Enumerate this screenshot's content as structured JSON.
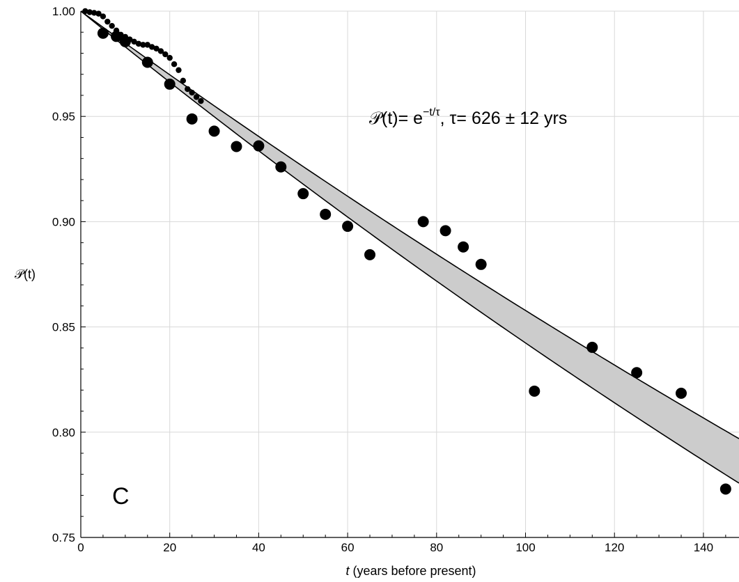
{
  "chart_data": {
    "type": "scatter",
    "title": "",
    "panel_label": "C",
    "annotation": {
      "prefix": "𝒫(t)= e",
      "exponent": "−t/τ",
      "suffix": ", τ= 626 ± 12 yrs"
    },
    "xlabel_var": "t",
    "xlabel_rest": " (years before present)",
    "ylabel": "𝒫(t)",
    "xlim": [
      0,
      148
    ],
    "ylim": [
      0.75,
      1.0
    ],
    "xticks": [
      0,
      20,
      40,
      60,
      80,
      100,
      120,
      140
    ],
    "yticks": [
      0.75,
      0.8,
      0.85,
      0.9,
      0.95,
      1.0
    ],
    "ytick_labels": [
      "0.75",
      "0.80",
      "0.85",
      "0.90",
      "0.95",
      "1.00"
    ],
    "grid": true,
    "band": {
      "upper_tau": 652,
      "lower_tau": 583,
      "fill": "#cccccc"
    },
    "series": [
      {
        "marker": "large-dot",
        "color": "#000000",
        "points": [
          [
            5,
            0.9895
          ],
          [
            8,
            0.988
          ],
          [
            10,
            0.9855
          ],
          [
            15,
            0.9757
          ],
          [
            20,
            0.9653
          ],
          [
            25,
            0.9488
          ],
          [
            30,
            0.943
          ],
          [
            35,
            0.9357
          ],
          [
            40,
            0.936
          ],
          [
            45,
            0.926
          ],
          [
            50,
            0.9133
          ],
          [
            55,
            0.9035
          ],
          [
            60,
            0.8978
          ],
          [
            65,
            0.8843
          ],
          [
            77,
            0.9
          ],
          [
            82,
            0.8957
          ],
          [
            86,
            0.888
          ],
          [
            90,
            0.8797
          ],
          [
            102,
            0.8195
          ],
          [
            115,
            0.8403
          ],
          [
            125,
            0.8283
          ],
          [
            135,
            0.8185
          ],
          [
            145,
            0.773
          ]
        ]
      },
      {
        "marker": "small-dot",
        "color": "#000000",
        "points": [
          [
            1,
            1.0
          ],
          [
            2,
            0.9995
          ],
          [
            3,
            0.9992
          ],
          [
            4,
            0.9988
          ],
          [
            5,
            0.9975
          ],
          [
            6,
            0.995
          ],
          [
            7,
            0.993
          ],
          [
            8,
            0.9908
          ],
          [
            9,
            0.9888
          ],
          [
            10,
            0.9878
          ],
          [
            11,
            0.9866
          ],
          [
            12,
            0.9855
          ],
          [
            13,
            0.9845
          ],
          [
            14,
            0.984
          ],
          [
            15,
            0.984
          ],
          [
            16,
            0.983
          ],
          [
            17,
            0.9822
          ],
          [
            18,
            0.981
          ],
          [
            19,
            0.9795
          ],
          [
            20,
            0.9778
          ],
          [
            21,
            0.9748
          ],
          [
            22,
            0.972
          ],
          [
            23,
            0.967
          ],
          [
            24,
            0.963
          ],
          [
            25,
            0.9613
          ],
          [
            26,
            0.9592
          ],
          [
            27,
            0.9573
          ]
        ]
      }
    ]
  }
}
